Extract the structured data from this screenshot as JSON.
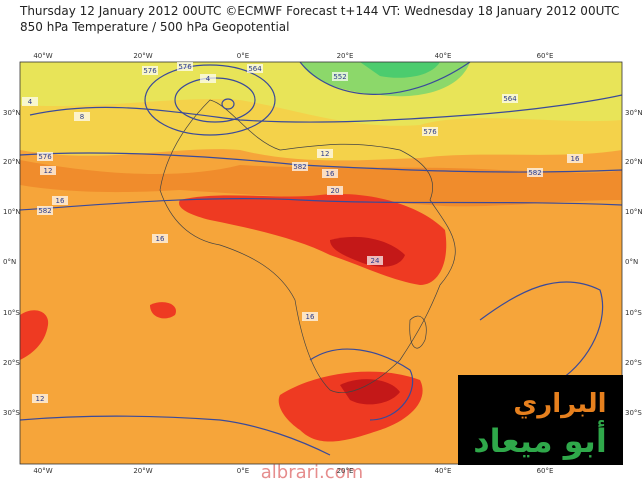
{
  "header": {
    "line1": "Thursday 12 January 2012 00UTC ©ECMWF Forecast t+144 VT: Wednesday 18 January 2012 00UTC",
    "line2": "850 hPa Temperature / 500 hPa Geopotential"
  },
  "longitude_labels": [
    "40°W",
    "20°W",
    "0°E",
    "20°E",
    "40°E",
    "60°E"
  ],
  "latitude_labels": [
    "30°N",
    "20°N",
    "10°N",
    "0°N",
    "10°S",
    "20°S",
    "30°S"
  ],
  "contour_labels": [
    "576",
    "576",
    "564",
    "552",
    "564",
    "576",
    "582",
    "576",
    "582",
    "582",
    "12",
    "12",
    "16",
    "16",
    "20",
    "24",
    "16",
    "16",
    "12",
    "16",
    "4",
    "8",
    "4"
  ],
  "logo": {
    "line1": "البراري",
    "line2": "أبو ميعاد"
  },
  "watermark": "albrari.com"
}
